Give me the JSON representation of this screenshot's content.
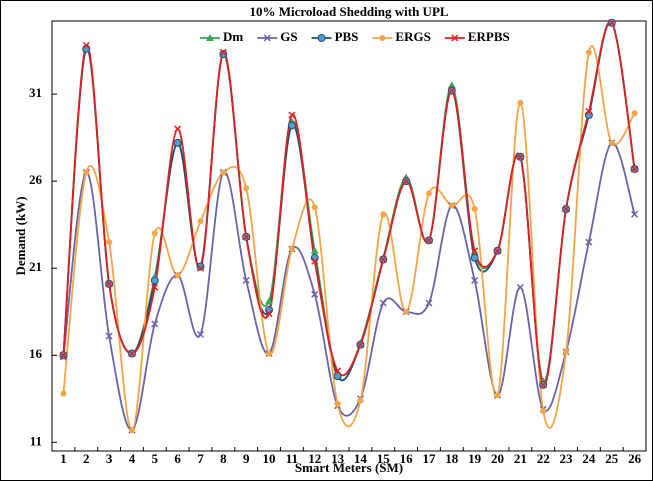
{
  "chart_data": {
    "type": "line",
    "title": "10% Microload Shedding with UPL",
    "x_label": "Smart Meters (SM)",
    "y_label": "Demand (kW)",
    "categories": [
      "1",
      "2",
      "3",
      "4",
      "5",
      "6",
      "7",
      "8",
      "9",
      "10",
      "11",
      "12",
      "13",
      "14",
      "15",
      "16",
      "17",
      "18",
      "19",
      "20",
      "21",
      "22",
      "23",
      "24",
      "25",
      "26"
    ],
    "ylim": [
      10.5,
      35.2
    ],
    "yticks": [
      11,
      16,
      21,
      26,
      31
    ],
    "grid": false,
    "legend": "top",
    "series": [
      {
        "name": "Dm",
        "color": "#3aa655",
        "marker": "triangle",
        "values": [
          16.0,
          33.6,
          20.1,
          16.1,
          20.5,
          28.2,
          21.1,
          33.3,
          22.8,
          19.1,
          29.4,
          22.0,
          14.8,
          16.7,
          21.6,
          26.2,
          22.6,
          31.5,
          21.9,
          22.0,
          27.4,
          14.5,
          24.4,
          29.9,
          35.1,
          26.7
        ]
      },
      {
        "name": "GS",
        "color": "#6b63a8",
        "marker": "x",
        "values": [
          15.9,
          26.5,
          17.1,
          11.7,
          17.8,
          20.6,
          17.2,
          26.5,
          20.3,
          16.1,
          22.1,
          19.5,
          13.1,
          13.5,
          19.0,
          18.5,
          19.0,
          24.6,
          20.3,
          13.7,
          19.9,
          12.9,
          16.2,
          22.5,
          28.2,
          24.1
        ]
      },
      {
        "name": "PBS",
        "color": "#1f4e79",
        "marker": "circle",
        "values": [
          16.0,
          33.6,
          20.1,
          16.1,
          20.3,
          28.2,
          21.1,
          33.3,
          22.8,
          18.6,
          29.2,
          21.6,
          14.8,
          16.6,
          21.5,
          26.0,
          22.6,
          31.2,
          21.6,
          22.0,
          27.4,
          14.3,
          24.4,
          29.8,
          35.1,
          26.7
        ]
      },
      {
        "name": "ERGS",
        "color": "#f5a443",
        "marker": "dot",
        "values": [
          13.8,
          26.5,
          22.5,
          11.7,
          23.0,
          20.6,
          23.7,
          26.5,
          25.6,
          16.1,
          22.1,
          24.5,
          13.2,
          13.4,
          24.1,
          18.5,
          25.3,
          24.6,
          24.4,
          13.7,
          30.5,
          12.8,
          16.2,
          33.4,
          28.2,
          29.9
        ]
      },
      {
        "name": "ERPBS",
        "color": "#e02020",
        "marker": "x",
        "values": [
          16.0,
          33.8,
          20.1,
          16.1,
          19.9,
          29.0,
          21.0,
          33.4,
          22.8,
          18.4,
          29.8,
          21.4,
          15.1,
          16.6,
          21.5,
          26.0,
          22.6,
          31.2,
          22.0,
          22.0,
          27.4,
          14.3,
          24.4,
          30.0,
          35.1,
          26.7
        ]
      }
    ]
  }
}
